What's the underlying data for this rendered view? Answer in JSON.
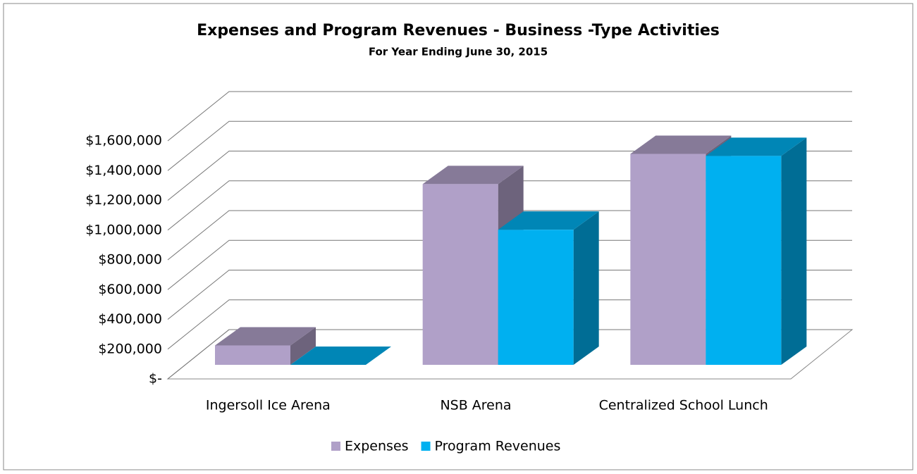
{
  "chart_data": {
    "type": "bar3d",
    "title": "Expenses and Program Revenues - Business -Type Activities",
    "subtitle": "For Year Ending June 30, 2015",
    "categories": [
      "Ingersoll Ice Arena",
      "NSB Arena",
      "Centralized School Lunch"
    ],
    "series": [
      {
        "name": "Expenses",
        "color": "#b0a0c8",
        "values": [
          130000,
          1215000,
          1418000
        ]
      },
      {
        "name": "Program Revenues",
        "color": "#00b0f0",
        "values": [
          0,
          908000,
          1404000
        ]
      }
    ],
    "ylim": [
      0,
      1600000
    ],
    "yticks": [
      {
        "value": 0,
        "label": "$-"
      },
      {
        "value": 200000,
        "label": "$200,000"
      },
      {
        "value": 400000,
        "label": "$400,000"
      },
      {
        "value": 600000,
        "label": "$600,000"
      },
      {
        "value": 800000,
        "label": "$800,000"
      },
      {
        "value": 1000000,
        "label": "$1,000,000"
      },
      {
        "value": 1200000,
        "label": "$1,200,000"
      },
      {
        "value": 1400000,
        "label": "$1,400,000"
      },
      {
        "value": 1600000,
        "label": "$1,600,000"
      }
    ],
    "grid": true,
    "legend": "bottom"
  }
}
